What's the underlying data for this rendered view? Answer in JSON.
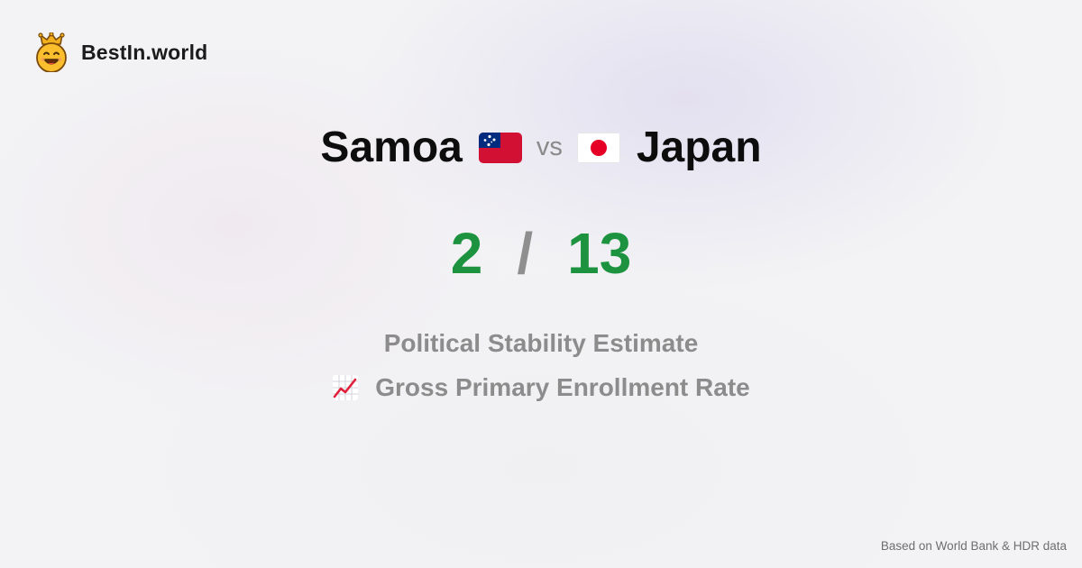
{
  "brand": {
    "name": "BestIn.world",
    "logo_icon": "crown-smiley-icon"
  },
  "comparison": {
    "left": {
      "name": "Samoa",
      "flag_icon": "samoa-flag-icon"
    },
    "vs_label": "vs",
    "right": {
      "name": "Japan",
      "flag_icon": "japan-flag-icon"
    }
  },
  "score": {
    "left": "2",
    "separator": "/",
    "right": "13"
  },
  "metrics": [
    {
      "label": "Political Stability Estimate"
    },
    {
      "label": "Gross Primary Enrollment Rate",
      "icon": "chart-increasing-icon"
    }
  ],
  "footer": {
    "source": "Based on World Bank & HDR data"
  },
  "colors": {
    "score": "#1d9340",
    "separator": "#8f8f8f",
    "metric_text": "#8c8c8c",
    "title_text": "#0d0d0d"
  }
}
